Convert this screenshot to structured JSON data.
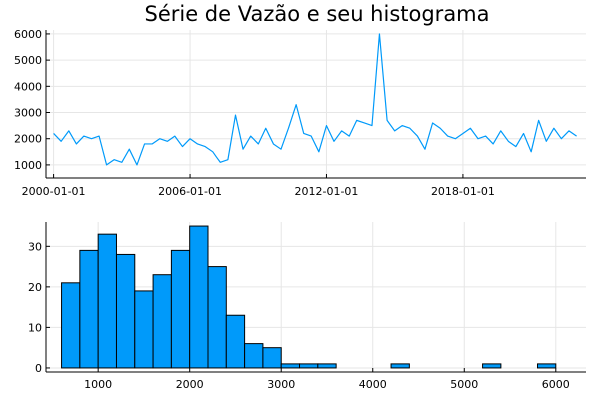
{
  "chart_data": [
    {
      "type": "line",
      "title": "Série de Vazão e seu histograma",
      "xlabel": "",
      "ylabel": "",
      "x_ticks": [
        "2000-01-01",
        "2006-01-01",
        "2012-01-01",
        "2018-01-01"
      ],
      "y_ticks": [
        1000,
        2000,
        3000,
        4000,
        5000,
        6000
      ],
      "xlim": [
        "1999-09-01",
        "2023-06-01"
      ],
      "ylim": [
        500,
        6150
      ],
      "grid": true,
      "legend": "none",
      "color": "#009AFA",
      "series": [
        {
          "x": [
            "2000-01-01",
            "2000-05-01",
            "2000-09-01",
            "2001-01-01",
            "2001-05-01",
            "2001-09-01",
            "2002-01-01",
            "2002-05-01",
            "2002-09-01",
            "2003-01-01",
            "2003-05-01",
            "2003-09-01",
            "2004-01-01",
            "2004-05-01",
            "2004-09-01",
            "2005-01-01",
            "2005-05-01",
            "2005-09-01",
            "2006-01-01",
            "2006-05-01",
            "2006-09-01",
            "2007-01-01",
            "2007-03-01",
            "2007-05-01",
            "2007-09-01",
            "2008-01-01",
            "2008-05-01",
            "2008-09-01",
            "2009-01-01",
            "2009-05-01",
            "2009-09-01",
            "2010-01-01",
            "2010-05-01",
            "2010-09-01",
            "2011-01-01",
            "2011-05-01",
            "2011-09-01",
            "2012-01-01",
            "2012-05-01",
            "2012-09-01",
            "2013-01-01",
            "2013-05-01",
            "2013-09-01",
            "2014-01-01",
            "2014-05-01",
            "2014-09-01",
            "2015-01-01",
            "2015-05-01",
            "2015-09-01",
            "2016-01-01",
            "2016-05-01",
            "2016-09-01",
            "2017-01-01",
            "2017-05-01",
            "2017-09-01",
            "2018-01-01",
            "2018-05-01",
            "2018-09-01",
            "2019-01-01",
            "2019-05-01",
            "2019-09-01",
            "2020-01-01",
            "2020-05-01",
            "2020-09-01",
            "2021-01-01",
            "2021-05-01",
            "2021-09-01",
            "2022-01-01",
            "2022-05-01",
            "2022-09-01",
            "2023-01-01"
          ],
          "y": [
            2200,
            1900,
            2300,
            1800,
            2100,
            2000,
            2100,
            1000,
            1200,
            1100,
            1600,
            1000,
            1800,
            1800,
            2000,
            1900,
            2100,
            1700,
            2000,
            1800,
            1700,
            1500,
            1300,
            1100,
            1200,
            2900,
            1600,
            2100,
            1800,
            2400,
            1800,
            1600,
            2400,
            3300,
            2200,
            2100,
            1500,
            2500,
            1900,
            2300,
            2100,
            2700,
            2600,
            2500,
            6000,
            2700,
            2300,
            2500,
            2400,
            2100,
            1600,
            2600,
            2400,
            2100,
            2000,
            2200,
            2400,
            2000,
            2100,
            1800,
            2300,
            1900,
            1700,
            2200,
            1500,
            2700,
            1900,
            2400,
            2000,
            2300,
            2100
          ]
        }
      ]
    },
    {
      "type": "bar",
      "title": "",
      "xlabel": "",
      "ylabel": "",
      "bin_edges": [
        600,
        800,
        1000,
        1200,
        1400,
        1600,
        1800,
        2000,
        2200,
        2400,
        2600,
        2800,
        3000,
        3200,
        3400,
        3600,
        3800,
        4000,
        4200,
        4400,
        4600,
        4800,
        5000,
        5200,
        5400,
        5600,
        5800,
        6000
      ],
      "counts": [
        21,
        29,
        33,
        28,
        19,
        23,
        29,
        35,
        25,
        13,
        6,
        5,
        1,
        1,
        1,
        0,
        0,
        0,
        1,
        0,
        0,
        0,
        0,
        1,
        0,
        0,
        1
      ],
      "x_ticks": [
        1000,
        2000,
        3000,
        4000,
        5000,
        6000
      ],
      "y_ticks": [
        0,
        10,
        20,
        30
      ],
      "xlim": [
        430,
        6330
      ],
      "ylim": [
        -1,
        36
      ],
      "grid": true,
      "legend": "none",
      "color": "#009AFA"
    }
  ]
}
